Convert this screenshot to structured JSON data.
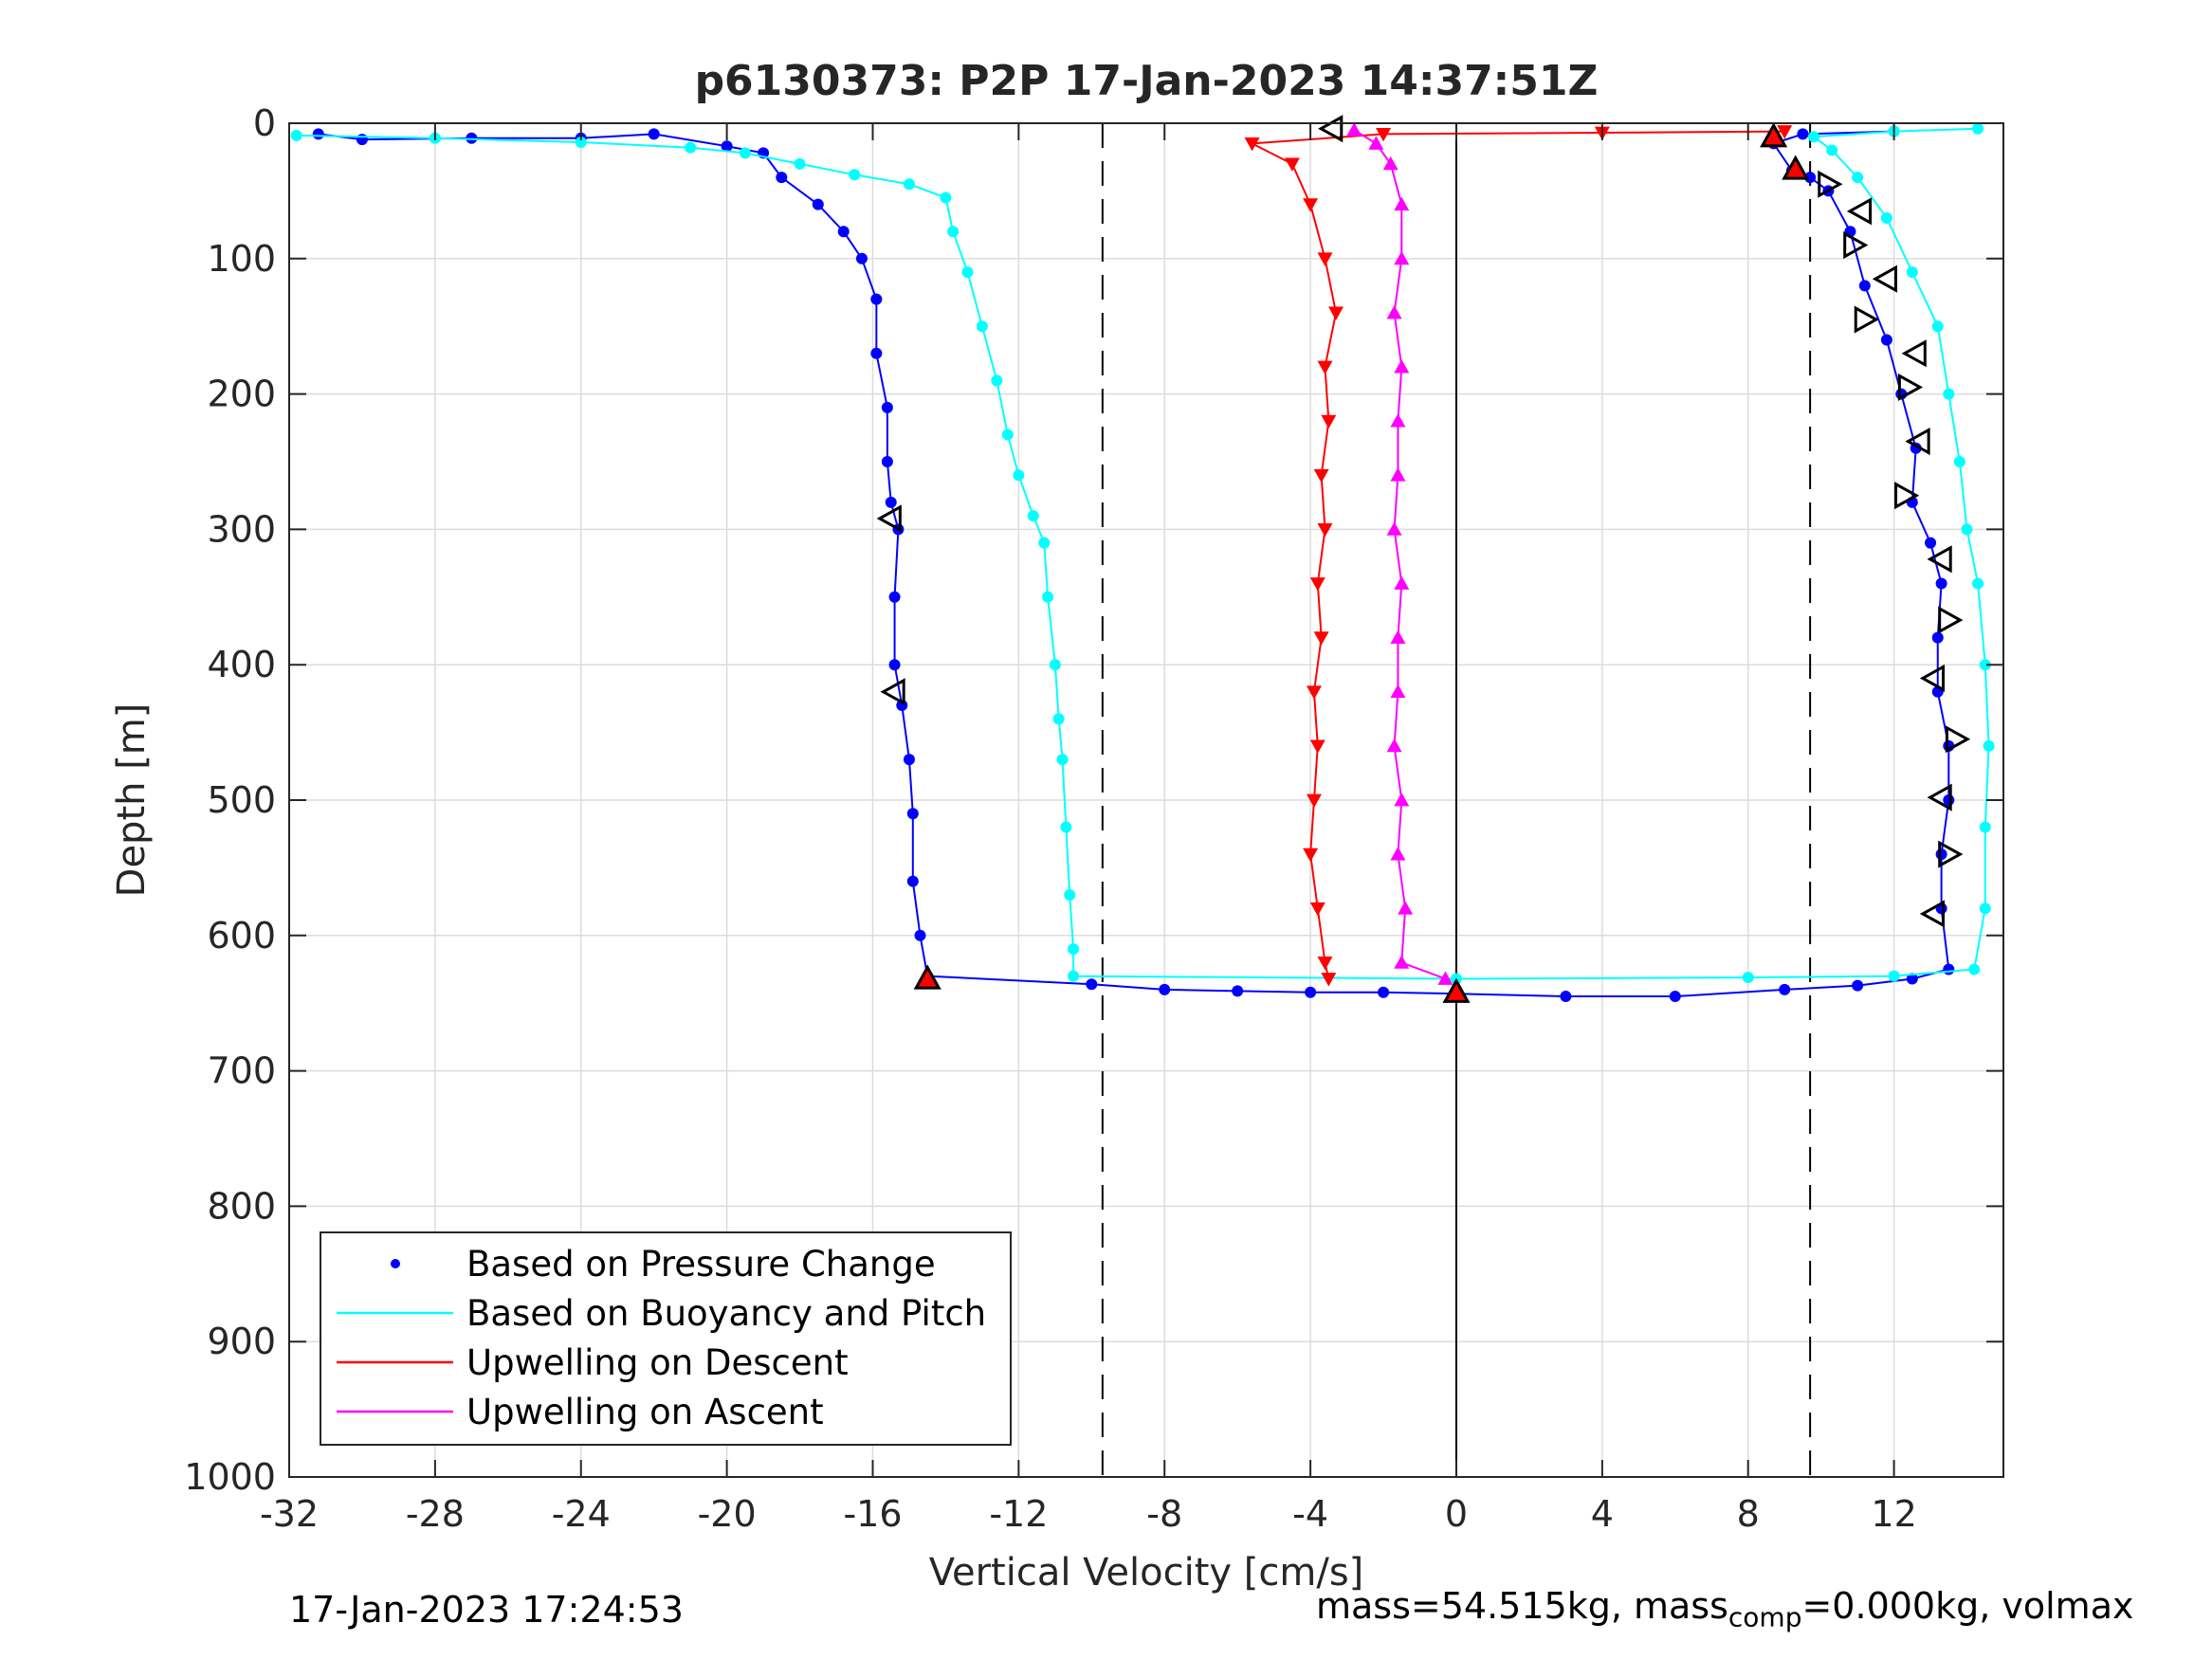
{
  "chart_data": {
    "type": "scatter",
    "title": "p6130373: P2P 17-Jan-2023 14:37:51Z",
    "xlabel": "Vertical Velocity [cm/s]",
    "ylabel": "Depth [m]",
    "xlim": [
      -32,
      15
    ],
    "ylim": [
      0,
      1000
    ],
    "y_reversed": true,
    "grid": true,
    "legend_position": "bottom-left",
    "x_ticks": [
      "-32",
      "-28",
      "-24",
      "-20",
      "-16",
      "-12",
      "-8",
      "-4",
      "0",
      "4",
      "8",
      "12"
    ],
    "y_ticks": [
      "0",
      "100",
      "200",
      "300",
      "400",
      "500",
      "600",
      "700",
      "800",
      "900",
      "1000"
    ],
    "reference_lines": [
      {
        "style": "dashed",
        "x": -9.7
      },
      {
        "style": "dashed",
        "x": 9.7
      },
      {
        "style": "solid",
        "x": 0
      }
    ],
    "series": [
      {
        "name": "Based on Pressure Change",
        "color": "#0000ff",
        "marker": "dot",
        "points": [
          [
            -31.2,
            8
          ],
          [
            -30,
            12
          ],
          [
            -27,
            11
          ],
          [
            -24,
            11
          ],
          [
            -22,
            8
          ],
          [
            -20,
            17
          ],
          [
            -19,
            22
          ],
          [
            -18.5,
            40
          ],
          [
            -17.5,
            60
          ],
          [
            -16.8,
            80
          ],
          [
            -16.3,
            100
          ],
          [
            -15.9,
            130
          ],
          [
            -15.9,
            170
          ],
          [
            -15.6,
            210
          ],
          [
            -15.6,
            250
          ],
          [
            -15.5,
            280
          ],
          [
            -15.3,
            300
          ],
          [
            -15.4,
            350
          ],
          [
            -15.4,
            400
          ],
          [
            -15.2,
            430
          ],
          [
            -15,
            470
          ],
          [
            -14.9,
            510
          ],
          [
            -14.9,
            560
          ],
          [
            -14.7,
            600
          ],
          [
            -14.5,
            630
          ],
          [
            -10,
            636
          ],
          [
            -8,
            640
          ],
          [
            -6,
            641
          ],
          [
            -4,
            642
          ],
          [
            -2,
            642
          ],
          [
            0,
            643
          ],
          [
            3,
            645
          ],
          [
            6,
            645
          ],
          [
            9,
            640
          ],
          [
            11,
            637
          ],
          [
            12.5,
            632
          ],
          [
            13.5,
            625
          ],
          [
            13.3,
            580
          ],
          [
            13.3,
            540
          ],
          [
            13.5,
            500
          ],
          [
            13.5,
            460
          ],
          [
            13.2,
            420
          ],
          [
            13.2,
            380
          ],
          [
            13.3,
            340
          ],
          [
            13,
            310
          ],
          [
            12.5,
            280
          ],
          [
            12.6,
            240
          ],
          [
            12.2,
            200
          ],
          [
            11.8,
            160
          ],
          [
            11.2,
            120
          ],
          [
            10.8,
            80
          ],
          [
            10.2,
            50
          ],
          [
            9.7,
            40
          ],
          [
            9.2,
            35
          ],
          [
            8.7,
            15
          ],
          [
            9.5,
            8
          ],
          [
            12,
            6
          ]
        ]
      },
      {
        "name": "Based on Buoyancy and Pitch",
        "color": "#00ffff",
        "marker": "dot-line",
        "points": [
          [
            -31.8,
            9
          ],
          [
            -28,
            11
          ],
          [
            -24,
            14
          ],
          [
            -21,
            18
          ],
          [
            -19.5,
            22
          ],
          [
            -18,
            30
          ],
          [
            -16.5,
            38
          ],
          [
            -15,
            45
          ],
          [
            -14,
            55
          ],
          [
            -13.8,
            80
          ],
          [
            -13.4,
            110
          ],
          [
            -13,
            150
          ],
          [
            -12.6,
            190
          ],
          [
            -12.3,
            230
          ],
          [
            -12,
            260
          ],
          [
            -11.6,
            290
          ],
          [
            -11.3,
            310
          ],
          [
            -11.2,
            350
          ],
          [
            -11,
            400
          ],
          [
            -10.9,
            440
          ],
          [
            -10.8,
            470
          ],
          [
            -10.7,
            520
          ],
          [
            -10.6,
            570
          ],
          [
            -10.5,
            610
          ],
          [
            -10.5,
            630
          ],
          [
            0,
            632
          ],
          [
            8,
            631
          ],
          [
            12,
            630
          ],
          [
            14.2,
            625
          ],
          [
            14.5,
            580
          ],
          [
            14.5,
            520
          ],
          [
            14.6,
            460
          ],
          [
            14.5,
            400
          ],
          [
            14.3,
            340
          ],
          [
            14,
            300
          ],
          [
            13.8,
            250
          ],
          [
            13.5,
            200
          ],
          [
            13.2,
            150
          ],
          [
            12.5,
            110
          ],
          [
            11.8,
            70
          ],
          [
            11,
            40
          ],
          [
            10.3,
            20
          ],
          [
            9.8,
            10
          ],
          [
            12,
            6
          ],
          [
            14.3,
            4
          ]
        ]
      },
      {
        "name": "Upwelling on Descent",
        "color": "#ff0000",
        "marker": "triangle-down",
        "points": [
          [
            9,
            6
          ],
          [
            4,
            7
          ],
          [
            -2,
            8
          ],
          [
            -5.6,
            15
          ],
          [
            -4.5,
            30
          ],
          [
            -4,
            60
          ],
          [
            -3.6,
            100
          ],
          [
            -3.3,
            140
          ],
          [
            -3.6,
            180
          ],
          [
            -3.5,
            220
          ],
          [
            -3.7,
            260
          ],
          [
            -3.6,
            300
          ],
          [
            -3.8,
            340
          ],
          [
            -3.7,
            380
          ],
          [
            -3.9,
            420
          ],
          [
            -3.8,
            460
          ],
          [
            -3.9,
            500
          ],
          [
            -4,
            540
          ],
          [
            -3.8,
            580
          ],
          [
            -3.6,
            620
          ],
          [
            -3.5,
            632
          ]
        ]
      },
      {
        "name": "Upwelling on Ascent",
        "color": "#ff00ff",
        "marker": "triangle-up",
        "points": [
          [
            -0.3,
            632
          ],
          [
            -1.5,
            620
          ],
          [
            -1.4,
            580
          ],
          [
            -1.6,
            540
          ],
          [
            -1.5,
            500
          ],
          [
            -1.7,
            460
          ],
          [
            -1.6,
            420
          ],
          [
            -1.6,
            380
          ],
          [
            -1.5,
            340
          ],
          [
            -1.7,
            300
          ],
          [
            -1.6,
            260
          ],
          [
            -1.6,
            220
          ],
          [
            -1.5,
            180
          ],
          [
            -1.7,
            140
          ],
          [
            -1.5,
            100
          ],
          [
            -1.5,
            60
          ],
          [
            -1.8,
            30
          ],
          [
            -2.2,
            15
          ],
          [
            -2.8,
            5
          ]
        ]
      }
    ],
    "highlight_markers": [
      {
        "glyph": "open-triangle-left",
        "x": -3.4,
        "y": 4
      },
      {
        "glyph": "open-triangle-left",
        "x": -15.5,
        "y": 292
      },
      {
        "glyph": "open-triangle-left",
        "x": -15.4,
        "y": 420
      },
      {
        "glyph": "filled-triangle-red",
        "x": -14.5,
        "y": 632
      },
      {
        "glyph": "filled-triangle-red",
        "x": 0,
        "y": 642
      },
      {
        "glyph": "filled-triangle-red",
        "x": 8.7,
        "y": 10
      },
      {
        "glyph": "filled-triangle-red",
        "x": 9.3,
        "y": 34
      },
      {
        "glyph": "open-triangle-right",
        "x": 10.2,
        "y": 45
      },
      {
        "glyph": "open-triangle-left",
        "x": 11.1,
        "y": 65
      },
      {
        "glyph": "open-triangle-right",
        "x": 10.9,
        "y": 90
      },
      {
        "glyph": "open-triangle-left",
        "x": 11.8,
        "y": 115
      },
      {
        "glyph": "open-triangle-right",
        "x": 11.2,
        "y": 145
      },
      {
        "glyph": "open-triangle-left",
        "x": 12.6,
        "y": 170
      },
      {
        "glyph": "open-triangle-right",
        "x": 12.4,
        "y": 195
      },
      {
        "glyph": "open-triangle-left",
        "x": 12.7,
        "y": 235
      },
      {
        "glyph": "open-triangle-right",
        "x": 12.3,
        "y": 275
      },
      {
        "glyph": "open-triangle-left",
        "x": 13.3,
        "y": 322
      },
      {
        "glyph": "open-triangle-right",
        "x": 13.5,
        "y": 367
      },
      {
        "glyph": "open-triangle-left",
        "x": 13.1,
        "y": 410
      },
      {
        "glyph": "open-triangle-right",
        "x": 13.7,
        "y": 455
      },
      {
        "glyph": "open-triangle-left",
        "x": 13.3,
        "y": 498
      },
      {
        "glyph": "open-triangle-right",
        "x": 13.5,
        "y": 540
      },
      {
        "glyph": "open-triangle-left",
        "x": 13.1,
        "y": 584
      }
    ]
  },
  "footer": {
    "date": "17-Jan-2023 17:24:53",
    "mass_prefix": "mass=54.515kg, mass",
    "mass_sub": "comp",
    "mass_suffix": "=0.000kg, volmax"
  }
}
